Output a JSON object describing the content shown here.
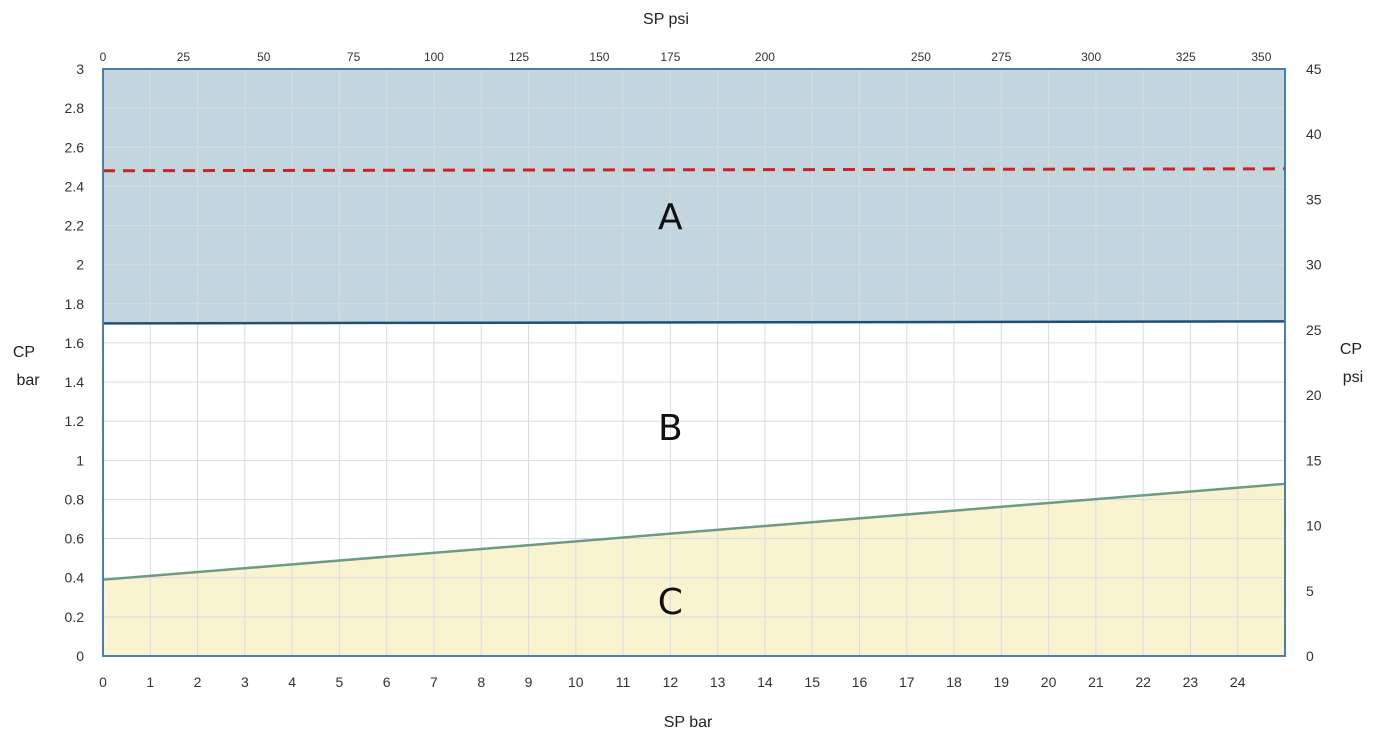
{
  "chart_data": {
    "type": "area",
    "top_axis_title": "SP psi",
    "bottom_axis_title": "SP bar",
    "left_axis_title": [
      "CP",
      "bar"
    ],
    "right_axis_title": [
      "CP",
      "psi"
    ],
    "x_bar": {
      "min": 0,
      "max": 25,
      "ticks": [
        0,
        1,
        2,
        3,
        4,
        5,
        6,
        7,
        8,
        9,
        10,
        11,
        12,
        13,
        14,
        15,
        16,
        17,
        18,
        19,
        20,
        21,
        22,
        23,
        24
      ]
    },
    "x_psi_ticks": [
      0,
      25,
      50,
      75,
      100,
      125,
      150,
      175,
      200,
      250,
      275,
      300,
      325,
      350
    ],
    "x_psi_tick_positions_bar": [
      0,
      1.7,
      3.4,
      5.3,
      7.0,
      8.8,
      10.5,
      12.0,
      14.0,
      17.3,
      19.0,
      20.9,
      22.9,
      24.5
    ],
    "y_bar": {
      "min": 0,
      "max": 3,
      "ticks": [
        0,
        0.2,
        0.4,
        0.6,
        0.8,
        1,
        1.2,
        1.4,
        1.6,
        1.8,
        2,
        2.2,
        2.4,
        2.6,
        2.8,
        3
      ]
    },
    "y_psi": {
      "min": 0,
      "max": 45,
      "ticks": [
        0,
        5,
        10,
        15,
        20,
        25,
        30,
        35,
        40,
        45
      ]
    },
    "grid": true,
    "series": [
      {
        "name": "",
        "kind": "line",
        "x": [
          0,
          25
        ],
        "y": [
          1.7,
          1.71
        ],
        "color": "#1f4e79"
      },
      {
        "name": "",
        "kind": "line",
        "x": [
          0,
          25
        ],
        "y": [
          0.39,
          0.88
        ],
        "color": "#6e9a86"
      },
      {
        "name": "",
        "kind": "dashed-line",
        "x": [
          0,
          25
        ],
        "y": [
          2.48,
          2.49
        ],
        "color": "#cc2222"
      }
    ],
    "regions": [
      {
        "label": "A",
        "fill": "#c3d6e0",
        "lower": [
          1.7,
          1.71
        ],
        "upper": [
          3,
          3
        ],
        "label_x": 12,
        "label_y": 2.25
      },
      {
        "label": "B",
        "fill": "#ffffff",
        "lower": [
          0.39,
          0.88
        ],
        "upper": [
          1.7,
          1.71
        ],
        "label_x": 12,
        "label_y": 1.17
      },
      {
        "label": "C",
        "fill": "#faf3cf",
        "lower": [
          0,
          0
        ],
        "upper": [
          0.39,
          0.88
        ],
        "label_x": 12,
        "label_y": 0.28
      }
    ]
  }
}
